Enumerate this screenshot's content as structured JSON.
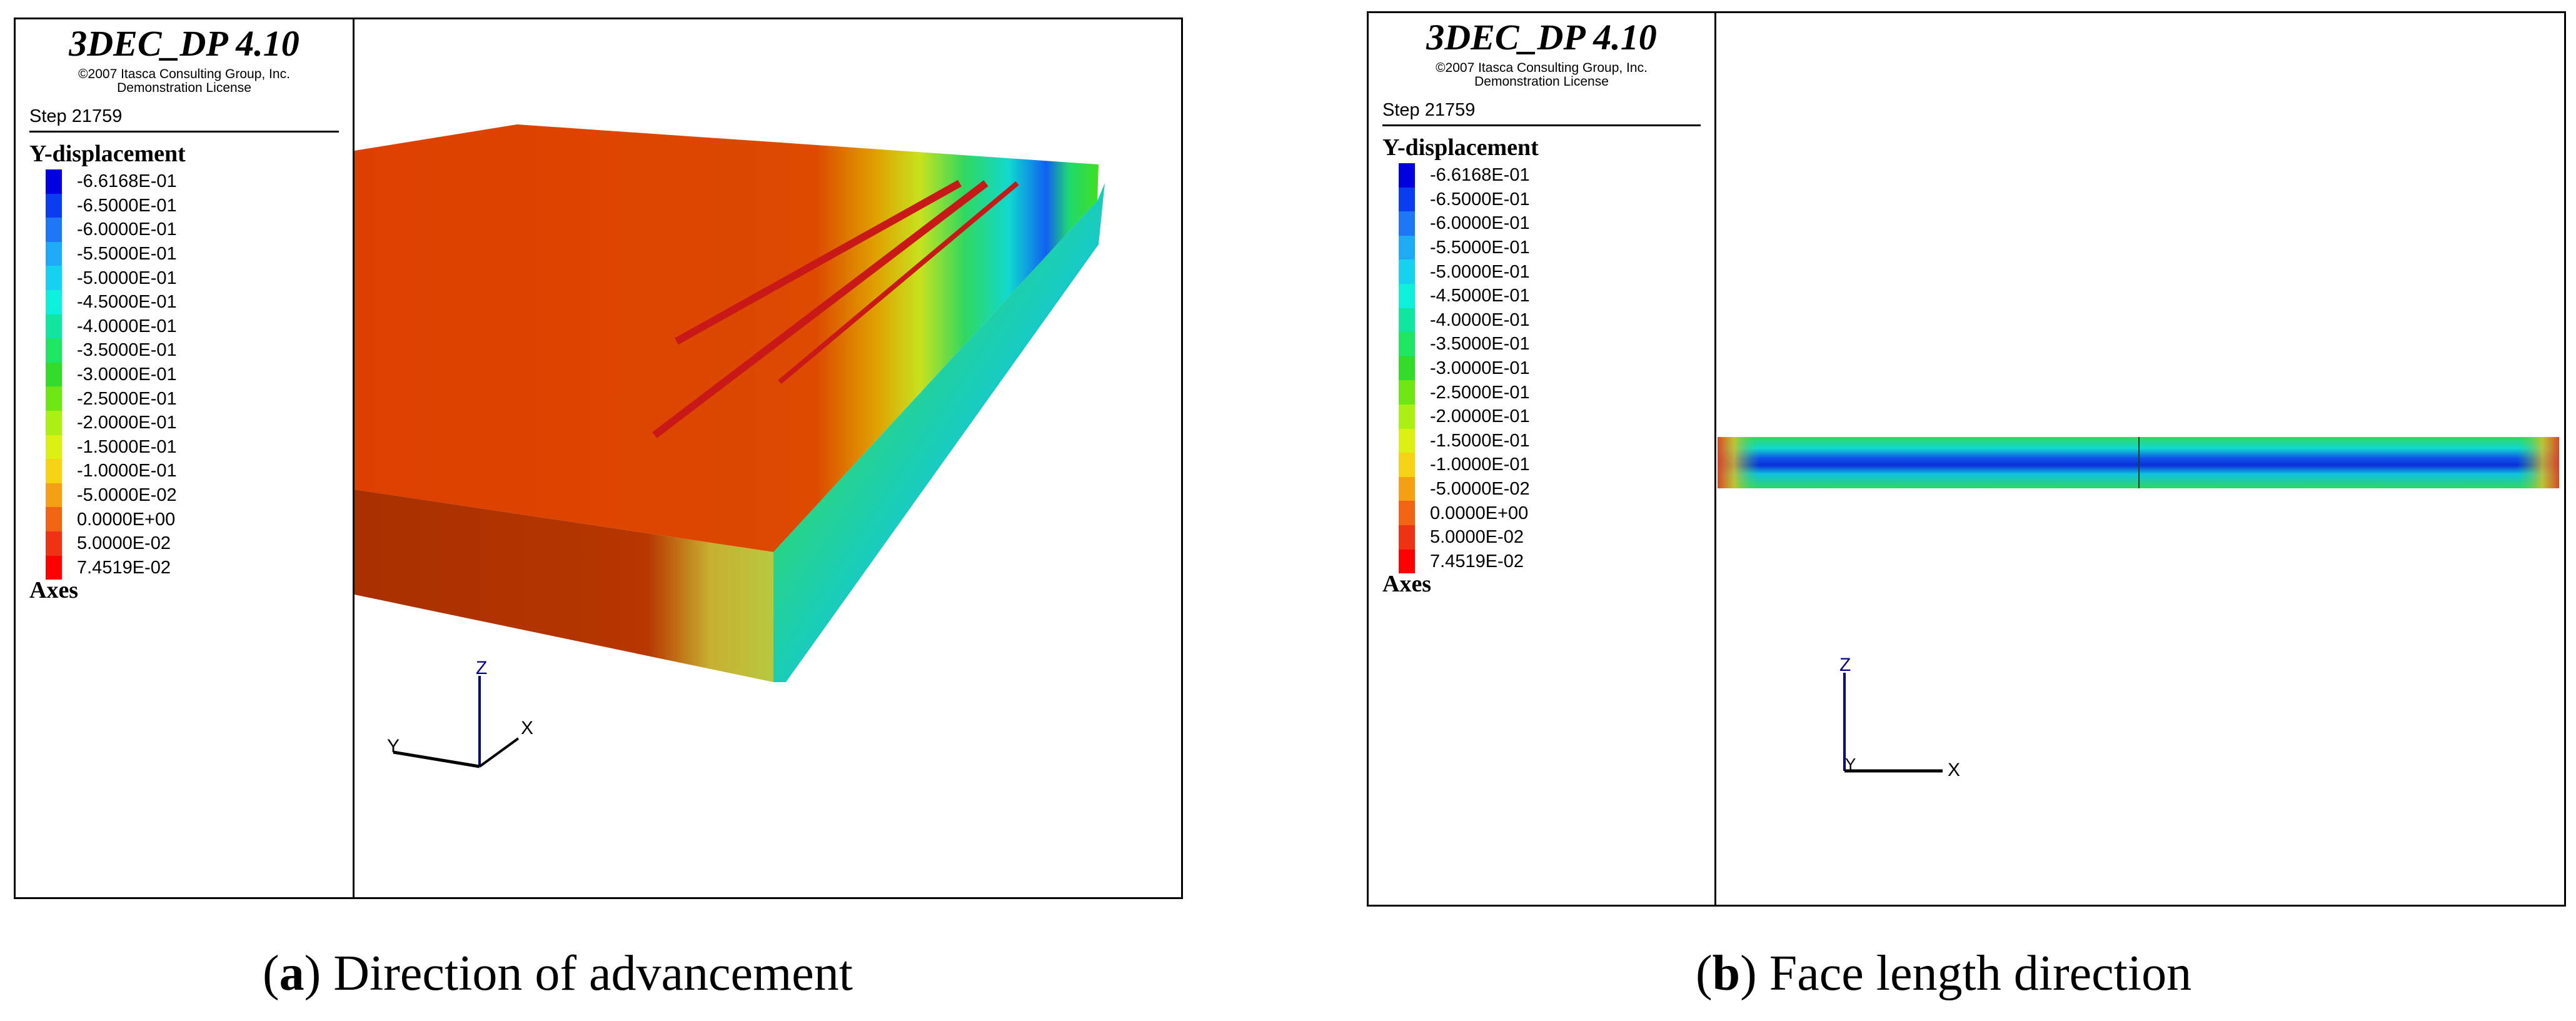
{
  "panels": [
    {
      "id": "a",
      "app_title": "3DEC_DP 4.10",
      "copyright": "©2007 Itasca Consulting Group, Inc.",
      "license": "Demonstration License",
      "step": "Step 21759",
      "variable_title": "Y-displacement",
      "axes_title": "Axes",
      "axis_labels": {
        "z": "Z",
        "x": "X",
        "y": "Y"
      },
      "caption_open": "(",
      "caption_tag": "a",
      "caption_text": ") Direction of advancement"
    },
    {
      "id": "b",
      "app_title": "3DEC_DP 4.10",
      "copyright": "©2007 Itasca Consulting Group, Inc.",
      "license": "Demonstration License",
      "step": "Step 21759",
      "variable_title": "Y-displacement",
      "axes_title": "Axes",
      "axis_labels": {
        "z": "Z",
        "x": "X",
        "y": "Y"
      },
      "caption_open": "(",
      "caption_tag": "b",
      "caption_text": ") Face length direction"
    }
  ],
  "legend_scale": [
    {
      "label": "-6.6168E-01",
      "color": "#0000e0"
    },
    {
      "label": "-6.5000E-01",
      "color": "#0a3cf0"
    },
    {
      "label": "-6.0000E-01",
      "color": "#1e78f5"
    },
    {
      "label": "-5.5000E-01",
      "color": "#1eaaf5"
    },
    {
      "label": "-5.0000E-01",
      "color": "#14d2f0"
    },
    {
      "label": "-4.5000E-01",
      "color": "#0ff0dc"
    },
    {
      "label": "-4.0000E-01",
      "color": "#10e6a0"
    },
    {
      "label": "-3.5000E-01",
      "color": "#1ee664"
    },
    {
      "label": "-3.0000E-01",
      "color": "#32dc28"
    },
    {
      "label": "-2.5000E-01",
      "color": "#6ee614"
    },
    {
      "label": "-2.0000E-01",
      "color": "#aaf014"
    },
    {
      "label": "-1.5000E-01",
      "color": "#dcf014"
    },
    {
      "label": "-1.0000E-01",
      "color": "#f5d214"
    },
    {
      "label": "-5.0000E-02",
      "color": "#f5a014"
    },
    {
      "label": "0.0000E+00",
      "color": "#f06414"
    },
    {
      "label": "5.0000E-02",
      "color": "#f03214"
    },
    {
      "label": "7.4519E-02",
      "color": "#ff0000"
    }
  ]
}
